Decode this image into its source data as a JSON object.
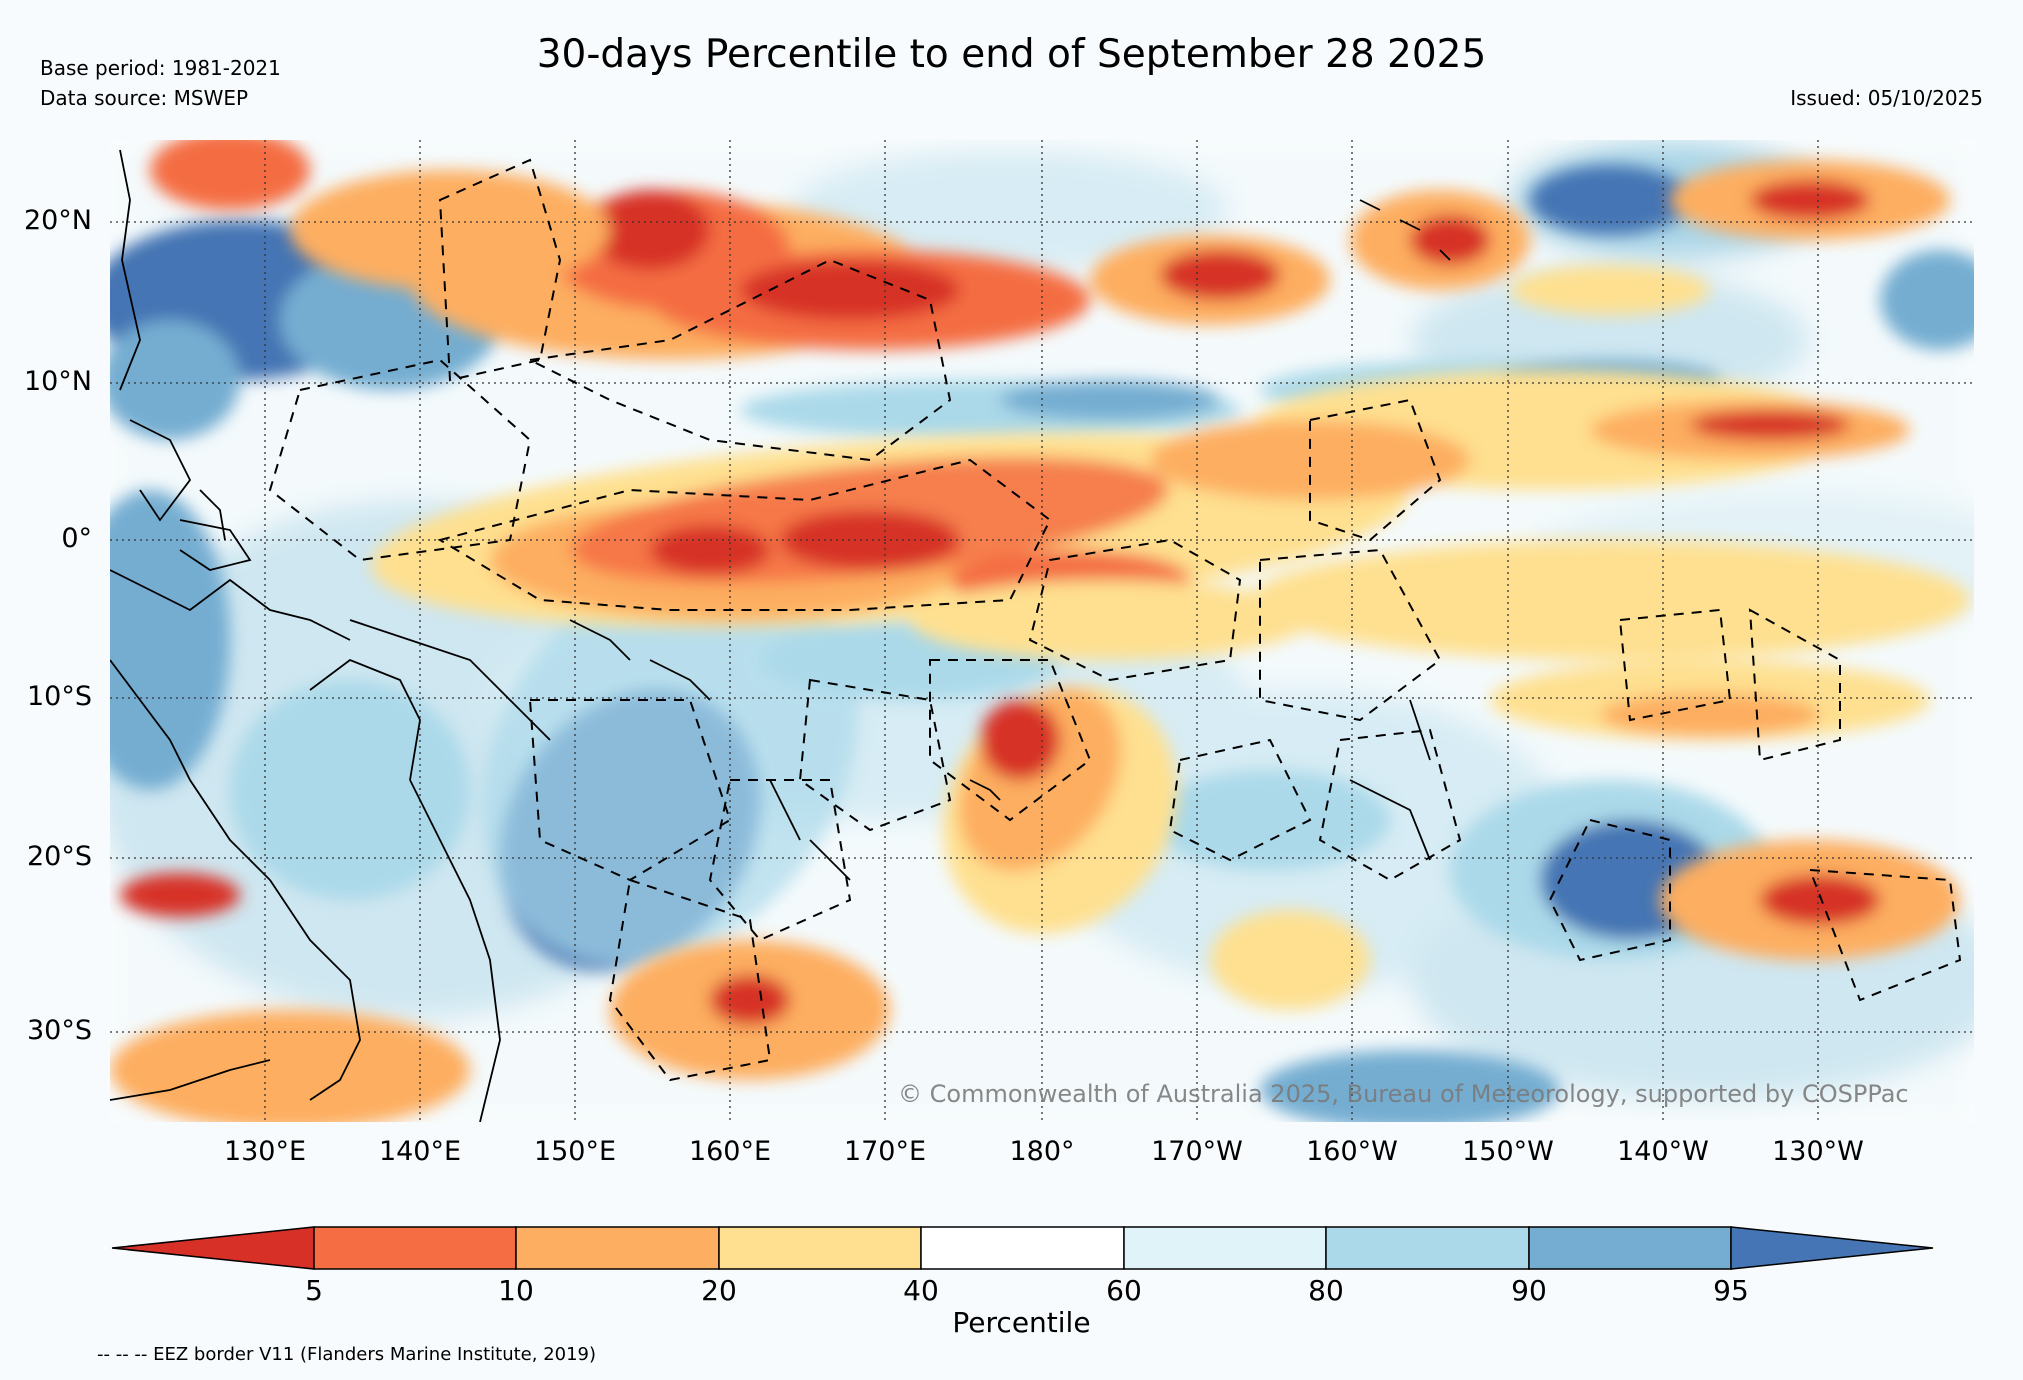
{
  "header": {
    "title": "30-days Percentile to end of September 28 2025",
    "base_period": "Base period: 1981-2021",
    "data_source": "Data source: MSWEP",
    "issued": "Issued: 05/10/2025"
  },
  "map": {
    "lat_ticks": [
      "20°N",
      "10°N",
      "0°",
      "10°S",
      "20°S",
      "30°S"
    ],
    "lon_ticks": [
      "130°E",
      "140°E",
      "150°E",
      "160°E",
      "170°E",
      "180°",
      "170°W",
      "160°W",
      "150°W",
      "140°W",
      "130°W"
    ],
    "lat_range": [
      -36,
      25
    ],
    "lon_range": [
      120,
      240
    ],
    "copyright": "© Commonwealth of Australia 2025, Bureau of Meteorology, supported by COSPPac"
  },
  "colorbar": {
    "label": "Percentile",
    "ticks": [
      "5",
      "10",
      "20",
      "40",
      "60",
      "80",
      "90",
      "95"
    ],
    "colors": [
      "#d73027",
      "#f46d43",
      "#fdae61",
      "#fee090",
      "#ffffff",
      "#e0f3f8",
      "#abd9e9",
      "#74add1",
      "#4575b4"
    ]
  },
  "footer": {
    "eez_note": "-- -- -- EEZ border V11 (Flanders Marine Institute, 2019)"
  }
}
